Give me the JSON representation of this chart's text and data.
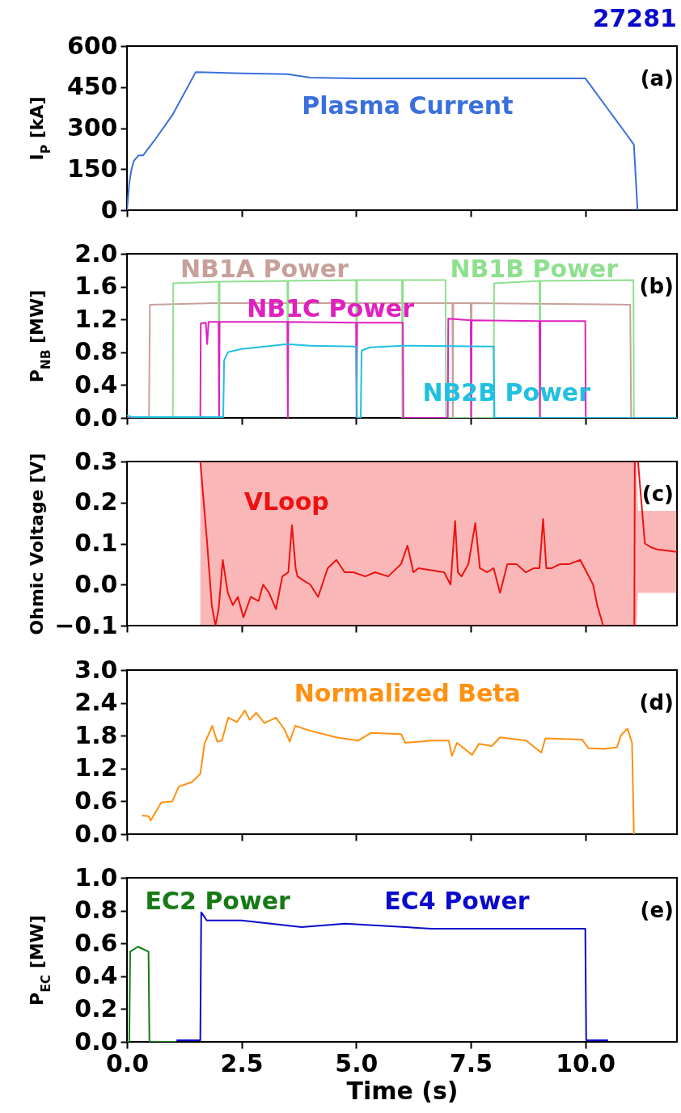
{
  "chart_data": [
    {
      "type": "line",
      "title": "27281",
      "ylabel": "I$_{P}$ [kA]",
      "xlim": [
        0,
        12
      ],
      "xticks": [
        {
          "value": 0,
          "label": null
        },
        {
          "value": 2.5,
          "label": null
        },
        {
          "value": 5,
          "label": null
        },
        {
          "value": 7.5,
          "label": null
        },
        {
          "value": 10,
          "label": null
        }
      ],
      "ylim": [
        0,
        600
      ],
      "yticks": [
        0,
        150,
        300,
        450,
        600
      ],
      "tick_labels": "y",
      "annotations": [
        "(a)"
      ],
      "series": [
        {
          "name": "Plasma Current",
          "color": "#3a6fdc",
          "x": [
            0,
            0.05,
            0.1,
            0.15,
            0.25,
            0.35,
            0.6,
            1.0,
            1.5,
            2.5,
            3.5,
            4.0,
            5.0,
            7.5,
            10.0,
            10.5,
            10.9,
            11.06,
            11.1,
            11.14
          ],
          "values": [
            0,
            100,
            150,
            180,
            200,
            200,
            255,
            350,
            505,
            500,
            497,
            485,
            482,
            482,
            482,
            368,
            277,
            240,
            120,
            0
          ]
        }
      ]
    },
    {
      "type": "line",
      "ylabel": "P$_{NB}$ [MW]",
      "xlim": [
        0,
        12
      ],
      "xticks": [
        {
          "value": 0,
          "label": null
        },
        {
          "value": 2.5,
          "label": null
        },
        {
          "value": 5,
          "label": null
        },
        {
          "value": 7.5,
          "label": null
        },
        {
          "value": 10,
          "label": null
        }
      ],
      "ylim": [
        0,
        2
      ],
      "yticks": [
        {
          "value": 0,
          "label": "0.0"
        },
        {
          "value": 0.4,
          "label": "0.4"
        },
        {
          "value": 0.8,
          "label": "0.8"
        },
        {
          "value": 1.2,
          "label": "1.2"
        },
        {
          "value": 1.6,
          "label": "1.6"
        },
        {
          "value": 2,
          "label": "2.0"
        }
      ],
      "tick_labels": "y",
      "annotations": [
        "(b)"
      ],
      "series": [
        {
          "name": "NB1A Power",
          "color": "#c8a09a",
          "x": [
            0,
            0.48,
            0.5,
            2.0,
            7.1,
            7.11,
            7.12,
            7.5,
            7.51,
            7.52,
            10.98,
            11.0,
            12
          ],
          "values": [
            0,
            0,
            1.38,
            1.4,
            1.4,
            0,
            1.4,
            1.4,
            0,
            1.4,
            1.38,
            0,
            0
          ]
        },
        {
          "name": "NB1B Power",
          "color": "#8ee08e",
          "x": [
            0,
            1.0,
            1.01,
            2.0,
            2.01,
            2.02,
            3.5,
            3.51,
            3.52,
            5.0,
            5.01,
            5.02,
            6.0,
            6.01,
            6.02,
            6.95,
            6.96,
            8.0,
            8.01,
            9.0,
            9.01,
            9.02,
            11.05,
            11.06,
            12
          ],
          "values": [
            0,
            0,
            1.64,
            1.66,
            0,
            1.66,
            1.67,
            0,
            1.67,
            1.68,
            0,
            1.68,
            1.68,
            0,
            1.68,
            1.68,
            0,
            0,
            1.64,
            1.67,
            0,
            1.67,
            1.68,
            0,
            0
          ]
        },
        {
          "name": "NB1C Power",
          "color": "#e020c0",
          "x": [
            0,
            1.6,
            1.61,
            1.72,
            1.75,
            1.78,
            2.0,
            2.01,
            2.02,
            3.5,
            3.51,
            3.52,
            5.0,
            5.01,
            5.02,
            6.02,
            6.03,
            7.0,
            7.01,
            7.5,
            7.51,
            7.52,
            9.0,
            9.01,
            9.02,
            10.0,
            10.01,
            12
          ],
          "values": [
            0,
            0,
            1.15,
            1.16,
            0.9,
            1.17,
            1.17,
            0,
            1.17,
            1.17,
            0,
            1.17,
            1.16,
            0,
            1.16,
            1.16,
            0,
            0,
            1.21,
            1.19,
            0,
            1.19,
            1.18,
            0,
            1.18,
            1.18,
            0,
            0
          ]
        },
        {
          "name": "NB2B Power",
          "color": "#20c0e0",
          "x": [
            0,
            0.05,
            0.1,
            2.1,
            2.12,
            2.2,
            2.5,
            3.5,
            4.0,
            5.0,
            5.02,
            5.1,
            5.12,
            5.3,
            6.0,
            8.0,
            8.02,
            12
          ],
          "values": [
            0.03,
            0.02,
            0.01,
            0.01,
            0.7,
            0.8,
            0.84,
            0.9,
            0.88,
            0.87,
            0,
            0,
            0.82,
            0.86,
            0.88,
            0.87,
            0,
            0
          ]
        }
      ]
    },
    {
      "type": "line",
      "ylabel": "Ohmic Voltage [V]",
      "xlim": [
        0,
        12
      ],
      "xticks": [
        {
          "value": 0,
          "label": null
        },
        {
          "value": 2.5,
          "label": null
        },
        {
          "value": 5,
          "label": null
        },
        {
          "value": 7.5,
          "label": null
        },
        {
          "value": 10,
          "label": null
        }
      ],
      "ylim": [
        -0.1,
        0.3
      ],
      "yticks": [
        {
          "value": -0.1,
          "label": "−0.1"
        },
        {
          "value": 0,
          "label": "0.0"
        },
        0.1,
        0.2,
        0.3
      ],
      "tick_labels": "y",
      "annotations": [
        "(c)"
      ],
      "series": [
        {
          "name": "VLoop",
          "color": "#ee1111",
          "x": [
            1.6,
            1.75,
            1.85,
            1.93,
            2.0,
            2.09,
            2.2,
            2.31,
            2.42,
            2.54,
            2.7,
            2.87,
            2.97,
            3.1,
            3.25,
            3.39,
            3.52,
            3.6,
            3.68,
            3.72,
            3.85,
            4.0,
            4.17,
            4.38,
            4.57,
            4.75,
            4.94,
            5.2,
            5.41,
            5.7,
            5.98,
            6.12,
            6.25,
            6.36,
            6.64,
            6.92,
            7.06,
            7.16,
            7.22,
            7.3,
            7.45,
            7.6,
            7.7,
            7.86,
            8.0,
            8.14,
            8.3,
            8.5,
            8.7,
            8.88,
            9.0,
            9.08,
            9.15,
            9.27,
            9.45,
            9.65,
            9.89,
            10.03,
            10.17,
            10.26,
            10.39,
            10.7,
            11.07,
            11.08,
            11.12,
            11.15,
            11.3,
            11.45,
            11.6,
            12
          ],
          "values": [
            0.3,
            0.1,
            -0.05,
            -0.1,
            -0.06,
            0.06,
            -0.02,
            -0.05,
            -0.03,
            -0.08,
            -0.03,
            -0.04,
            0.0,
            -0.02,
            -0.06,
            0.02,
            0.03,
            0.145,
            0.04,
            0.02,
            0.01,
            0.0,
            -0.03,
            0.04,
            0.06,
            0.03,
            0.03,
            0.02,
            0.03,
            0.02,
            0.05,
            0.095,
            0.03,
            0.04,
            0.035,
            0.03,
            0.0,
            0.155,
            0.03,
            0.02,
            0.05,
            0.15,
            0.04,
            0.03,
            0.04,
            -0.02,
            0.05,
            0.05,
            0.03,
            0.04,
            0.04,
            0.16,
            0.04,
            0.04,
            0.05,
            0.05,
            0.06,
            0.03,
            0.0,
            -0.05,
            -0.1,
            null,
            -0.1,
            0.3,
            null,
            0.3,
            0.1,
            0.09,
            0.085,
            0.08
          ],
          "lower": [
            -0.1,
            -0.1,
            -0.1,
            -0.1,
            -0.1,
            -0.1,
            -0.1,
            -0.1,
            -0.1,
            -0.1,
            -0.1,
            -0.1,
            -0.1,
            -0.1,
            -0.1,
            -0.1,
            -0.1,
            -0.1,
            -0.1,
            -0.1,
            -0.1,
            -0.1,
            -0.1,
            -0.1,
            -0.1,
            -0.1,
            -0.1,
            -0.1,
            -0.1,
            -0.1,
            -0.1,
            -0.1,
            -0.1,
            -0.1,
            -0.1,
            -0.1,
            -0.1,
            -0.1,
            -0.1,
            -0.1,
            -0.1,
            -0.1,
            -0.1,
            -0.1,
            -0.1,
            -0.1,
            -0.1,
            -0.1,
            -0.1,
            -0.1,
            -0.1,
            -0.1,
            -0.1,
            -0.1,
            -0.1,
            -0.1,
            -0.1,
            -0.1,
            -0.1,
            -0.1,
            -0.1,
            -0.1,
            -0.1,
            -0.1,
            -0.1,
            -0.02,
            -0.02,
            -0.02,
            -0.02,
            -0.02
          ],
          "upper": [
            0.3,
            0.3,
            0.3,
            0.3,
            0.3,
            0.3,
            0.3,
            0.3,
            0.3,
            0.3,
            0.3,
            0.3,
            0.3,
            0.3,
            0.3,
            0.3,
            0.3,
            0.3,
            0.3,
            0.3,
            0.3,
            0.3,
            0.3,
            0.3,
            0.3,
            0.3,
            0.3,
            0.3,
            0.3,
            0.3,
            0.3,
            0.3,
            0.3,
            0.3,
            0.3,
            0.3,
            0.3,
            0.3,
            0.3,
            0.3,
            0.3,
            0.3,
            0.3,
            0.3,
            0.3,
            0.3,
            0.3,
            0.3,
            0.3,
            0.3,
            0.3,
            0.3,
            0.3,
            0.3,
            0.3,
            0.3,
            0.3,
            0.3,
            0.3,
            0.3,
            0.3,
            0.3,
            0.3,
            0.3,
            0.3,
            0.18,
            0.18,
            0.18,
            0.18,
            0.18
          ]
        }
      ]
    },
    {
      "type": "line",
      "xlim": [
        0,
        12
      ],
      "xticks": [
        {
          "value": 0,
          "label": null
        },
        {
          "value": 2.5,
          "label": null
        },
        {
          "value": 5,
          "label": null
        },
        {
          "value": 7.5,
          "label": null
        },
        {
          "value": 10,
          "label": null
        }
      ],
      "ylim": [
        0,
        3
      ],
      "yticks": [
        {
          "value": 0,
          "label": "0.0"
        },
        0.6,
        1.2,
        1.8,
        2.4,
        {
          "value": 3,
          "label": "3.0"
        }
      ],
      "tick_labels": "y",
      "annotations": [
        "(d)"
      ],
      "series": [
        {
          "name": "Normalized Beta",
          "color": "#ff9010",
          "x": [
            0.33,
            0.47,
            0.52,
            0.75,
            0.99,
            1.13,
            1.41,
            1.6,
            1.69,
            1.86,
            1.97,
            2.07,
            2.21,
            2.4,
            2.57,
            2.68,
            2.82,
            3.0,
            3.25,
            3.44,
            3.55,
            3.67,
            4.0,
            4.57,
            5.04,
            5.32,
            5.98,
            6.07,
            6.64,
            7.02,
            7.09,
            7.2,
            7.53,
            7.68,
            7.96,
            8.14,
            8.71,
            9.04,
            9.13,
            9.93,
            10.07,
            10.41,
            10.69,
            10.78,
            10.92,
            11.02,
            11.06
          ],
          "values": [
            0.34,
            0.33,
            0.25,
            0.58,
            0.6,
            0.87,
            0.95,
            1.1,
            1.65,
            1.98,
            1.69,
            1.71,
            2.13,
            2.05,
            2.26,
            2.09,
            2.22,
            2.03,
            2.13,
            1.91,
            1.69,
            1.98,
            1.89,
            1.77,
            1.71,
            1.85,
            1.83,
            1.67,
            1.71,
            1.71,
            1.43,
            1.67,
            1.45,
            1.65,
            1.61,
            1.77,
            1.71,
            1.49,
            1.75,
            1.73,
            1.57,
            1.56,
            1.59,
            1.81,
            1.93,
            1.67,
            0.0
          ]
        }
      ]
    },
    {
      "type": "line",
      "xlabel": "Time (s)",
      "ylabel": "P$_{EC}$ [MW]",
      "xlim": [
        0,
        12
      ],
      "xticks": [
        {
          "value": 0,
          "label": "0.0"
        },
        {
          "value": 2.5,
          "label": "2.5"
        },
        {
          "value": 5,
          "label": "5.0"
        },
        {
          "value": 7.5,
          "label": "7.5"
        },
        {
          "value": 10,
          "label": "10.0"
        }
      ],
      "ylim": [
        0,
        1
      ],
      "yticks": [
        {
          "value": 0,
          "label": "0.0"
        },
        0.2,
        0.4,
        0.6,
        0.8,
        {
          "value": 1,
          "label": "1.0"
        }
      ],
      "annotations": [
        "(e)"
      ],
      "series": [
        {
          "name": "EC2 Power",
          "color": "#167a16",
          "x": [
            0,
            0.05,
            0.07,
            0.24,
            0.47,
            0.49,
            1.08
          ],
          "values": [
            0,
            0,
            0.55,
            0.58,
            0.55,
            0,
            0
          ]
        },
        {
          "name": "EC4 Power",
          "color": "#0a0acc",
          "x": [
            1.08,
            1.6,
            1.62,
            1.74,
            2.5,
            3.81,
            4.76,
            6.64,
            10.0,
            10.02,
            10.5
          ],
          "values": [
            0.01,
            0.01,
            0.79,
            0.74,
            0.74,
            0.7,
            0.72,
            0.69,
            0.69,
            0.01,
            0.01
          ]
        }
      ]
    }
  ]
}
